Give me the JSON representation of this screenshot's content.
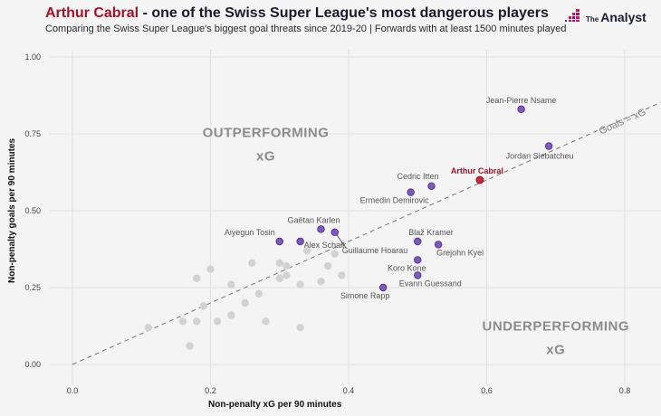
{
  "header": {
    "title_highlight": "Arthur Cabral",
    "title_rest": " - one of the Swiss Super League's most dangerous players",
    "subtitle": "Comparing the Swiss Super League's biggest goal threats since 2019-20 | Forwards with at least 1500 minutes played",
    "logo_small": "The",
    "logo_big": "Analyst",
    "logo_icon": "pixel-bars-logo-icon"
  },
  "colors": {
    "highlight": "#c8283c",
    "labelled": "#7e57c2",
    "other": "#d2d2d2",
    "title_accent": "#a3122a"
  },
  "chart_data": {
    "type": "scatter",
    "title": "Arthur Cabral - one of the Swiss Super League's most dangerous players",
    "subtitle": "Comparing the Swiss Super League's biggest goal threats since 2019-20 | Forwards with at least 1500 minutes played",
    "xlabel": "Non-penalty xG per 90 minutes",
    "ylabel": "Non-penalty goals per 90 minutes",
    "xlim": [
      0,
      0.8
    ],
    "ylim": [
      0,
      1.0
    ],
    "xticks": [
      "0.0",
      "0.2",
      "0.4",
      "0.6",
      "0.8"
    ],
    "xtick_values": [
      0,
      0.2,
      0.4,
      0.6,
      0.8
    ],
    "yticks": [
      "0.00",
      "0.25",
      "0.50",
      "0.75",
      "1.00"
    ],
    "ytick_values": [
      0,
      0.25,
      0.5,
      0.75,
      1.0
    ],
    "grid": true,
    "reference_line": {
      "label": "Goals = xG",
      "slope": 1,
      "style": "dashed"
    },
    "annotations": [
      {
        "text": "OUTPERFORMING",
        "line2": "xG",
        "x": 0.28,
        "y": 0.74
      },
      {
        "text": "UNDERPERFORMING",
        "line2": "xG",
        "x": 0.7,
        "y": 0.11
      }
    ],
    "highlighted": [
      {
        "name": "Arthur Cabral",
        "x": 0.59,
        "y": 0.6
      }
    ],
    "labelled": [
      {
        "name": "Jean-Pierre Nsame",
        "x": 0.65,
        "y": 0.83
      },
      {
        "name": "Jordan Siebatcheu",
        "x": 0.69,
        "y": 0.71
      },
      {
        "name": "Cedric Itten",
        "x": 0.52,
        "y": 0.58
      },
      {
        "name": "Ermedin Demirovic",
        "x": 0.49,
        "y": 0.56
      },
      {
        "name": "Gaëtan Karlen",
        "x": 0.36,
        "y": 0.44
      },
      {
        "name": "Guillaume Hoarau",
        "x": 0.38,
        "y": 0.43
      },
      {
        "name": "Aiyegun Tosin",
        "x": 0.3,
        "y": 0.4
      },
      {
        "name": "Alex Schalk",
        "x": 0.33,
        "y": 0.4
      },
      {
        "name": "Blaž Kramer",
        "x": 0.5,
        "y": 0.4
      },
      {
        "name": "Grejohn Kyei",
        "x": 0.53,
        "y": 0.39
      },
      {
        "name": "Koro Kone",
        "x": 0.5,
        "y": 0.34
      },
      {
        "name": "Evann Guessand",
        "x": 0.5,
        "y": 0.29
      },
      {
        "name": "Simone Rapp",
        "x": 0.45,
        "y": 0.25
      }
    ],
    "others": [
      {
        "x": 0.11,
        "y": 0.12
      },
      {
        "x": 0.16,
        "y": 0.14
      },
      {
        "x": 0.17,
        "y": 0.06
      },
      {
        "x": 0.18,
        "y": 0.14
      },
      {
        "x": 0.18,
        "y": 0.28
      },
      {
        "x": 0.19,
        "y": 0.19
      },
      {
        "x": 0.2,
        "y": 0.31
      },
      {
        "x": 0.21,
        "y": 0.14
      },
      {
        "x": 0.23,
        "y": 0.16
      },
      {
        "x": 0.23,
        "y": 0.26
      },
      {
        "x": 0.25,
        "y": 0.2
      },
      {
        "x": 0.26,
        "y": 0.33
      },
      {
        "x": 0.27,
        "y": 0.23
      },
      {
        "x": 0.28,
        "y": 0.14
      },
      {
        "x": 0.3,
        "y": 0.33
      },
      {
        "x": 0.3,
        "y": 0.28
      },
      {
        "x": 0.31,
        "y": 0.29
      },
      {
        "x": 0.31,
        "y": 0.32
      },
      {
        "x": 0.33,
        "y": 0.26
      },
      {
        "x": 0.33,
        "y": 0.12
      },
      {
        "x": 0.34,
        "y": 0.37
      },
      {
        "x": 0.36,
        "y": 0.27
      },
      {
        "x": 0.37,
        "y": 0.32
      },
      {
        "x": 0.38,
        "y": 0.36
      },
      {
        "x": 0.39,
        "y": 0.29
      }
    ]
  }
}
